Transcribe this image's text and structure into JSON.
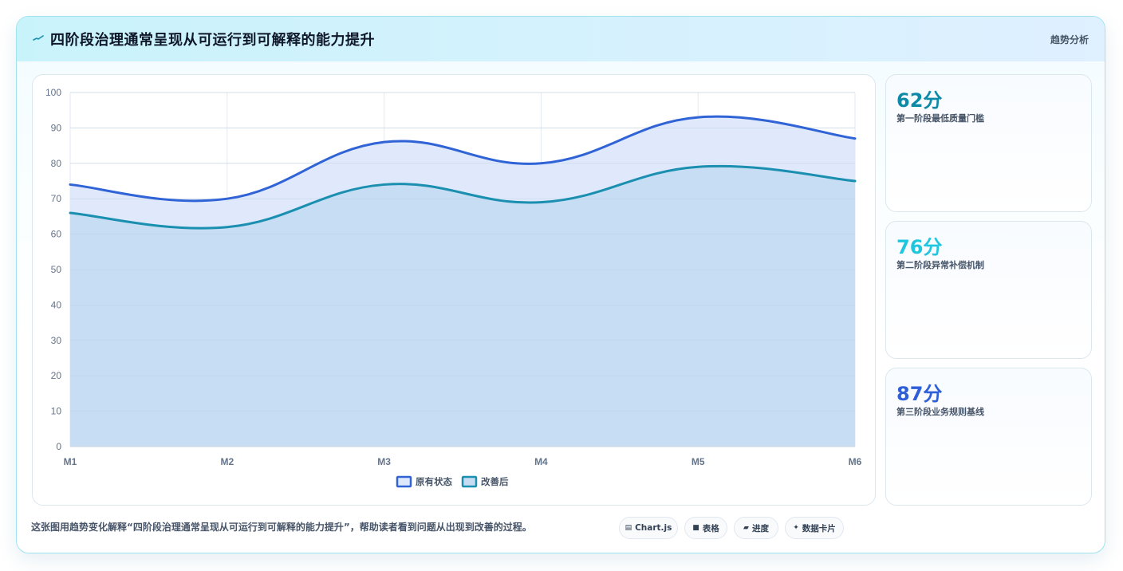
{
  "header": {
    "title": "四阶段治理通常呈现从可运行到可解释的能力提升",
    "tag": "趋势分析",
    "icon": "pulse-icon"
  },
  "chart_data": {
    "type": "area",
    "categories": [
      "M1",
      "M2",
      "M3",
      "M4",
      "M5",
      "M6"
    ],
    "series": [
      {
        "name": "原有状态",
        "values": [
          74,
          70,
          86,
          80,
          93,
          87
        ],
        "color": "#2f63d6",
        "fill": "#dde8fb"
      },
      {
        "name": "改善后",
        "values": [
          66,
          62,
          74,
          69,
          79,
          75
        ],
        "color": "#1a8fb0",
        "fill": "#c5dcf2"
      }
    ],
    "ylim": [
      0,
      100
    ],
    "yticks": [
      "0",
      "10",
      "20",
      "30",
      "40",
      "50",
      "60",
      "70",
      "80",
      "90",
      "100"
    ],
    "grid": true,
    "legend": "bottom-center"
  },
  "stats": [
    {
      "value": "62分",
      "label": "第一阶段最低质量门槛",
      "color": "#0e8aa6"
    },
    {
      "value": "76分",
      "label": "第二阶段异常补偿机制",
      "color": "#1fc6de"
    },
    {
      "value": "87分",
      "label": "第三阶段业务规则基线",
      "color": "#2f5fd6"
    }
  ],
  "footer": {
    "text": "这张图用趋势变化解释“四阶段治理通常呈现从可运行到可解释的能力提升”，帮助读者看到问题从出现到改善的过程。",
    "pills": [
      {
        "icon": "▤",
        "label": "Chart.js"
      },
      {
        "icon": "■",
        "label": "表格"
      },
      {
        "icon": "▰",
        "label": "进度"
      },
      {
        "icon": "✦",
        "label": "数据卡片"
      }
    ]
  }
}
